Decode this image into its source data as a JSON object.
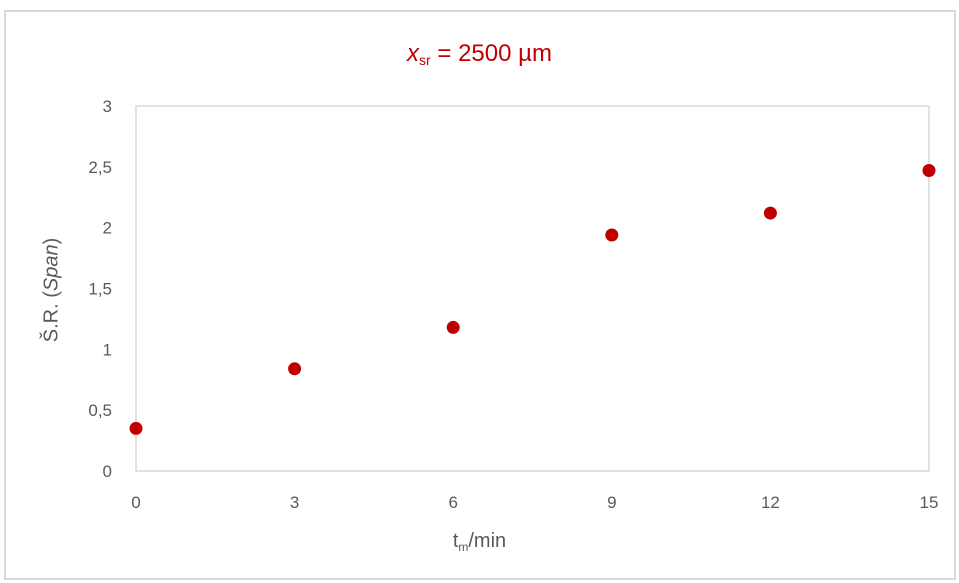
{
  "chart_data": {
    "type": "scatter",
    "title": {
      "var": "x",
      "sub": "sr",
      "rest": " = 2500 µm"
    },
    "xlabel": {
      "main": "t",
      "sub": "m",
      "rest": "/min"
    },
    "ylabel": {
      "main": "Š.R. (",
      "italic": "Span",
      "rest": ")"
    },
    "x_ticks": [
      "0",
      "3",
      "6",
      "9",
      "12",
      "15"
    ],
    "y_ticks": [
      "0",
      "0,5",
      "1",
      "1,5",
      "2",
      "2,5",
      "3"
    ],
    "x_tick_values": [
      0,
      3,
      6,
      9,
      12,
      15
    ],
    "y_tick_values": [
      0,
      0.5,
      1,
      1.5,
      2,
      2.5,
      3
    ],
    "xlim": [
      0,
      15
    ],
    "ylim": [
      0,
      3
    ],
    "grid": false,
    "marker_color": "#c00000",
    "points": [
      {
        "x": 0,
        "y": 0.35
      },
      {
        "x": 3,
        "y": 0.84
      },
      {
        "x": 6,
        "y": 1.18
      },
      {
        "x": 9,
        "y": 1.94
      },
      {
        "x": 12,
        "y": 2.12
      },
      {
        "x": 15,
        "y": 2.47
      }
    ]
  }
}
